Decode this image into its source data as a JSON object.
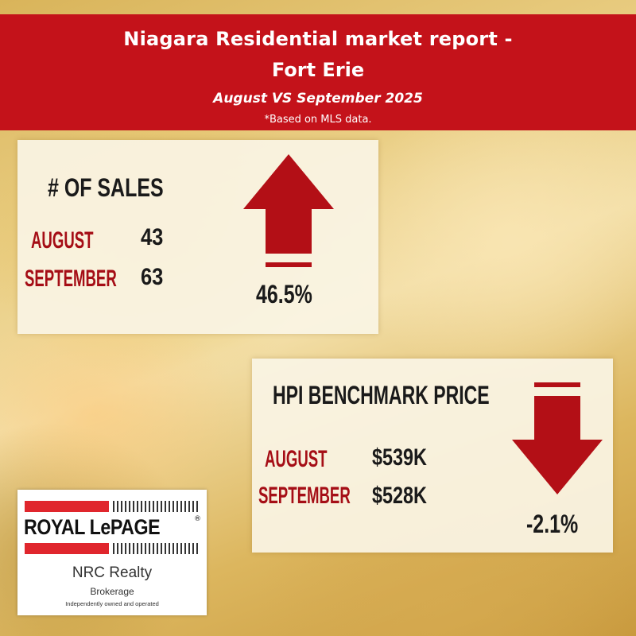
{
  "header": {
    "title_line1": "Niagara Residential market report -",
    "title_line2": "Fort Erie",
    "subtitle": "August VS September 2025",
    "note": "*Based on MLS data."
  },
  "sales": {
    "title": "# OF SALES",
    "rows": [
      {
        "label": "AUGUST",
        "value": "43"
      },
      {
        "label": "SEPTEMBER",
        "value": "63"
      }
    ],
    "change": "46.5%",
    "direction": "up",
    "arrow_icon": "arrow-up-icon"
  },
  "hpi": {
    "title": "HPI BENCHMARK PRICE",
    "rows": [
      {
        "label": "AUGUST",
        "value": "$539K"
      },
      {
        "label": "SEPTEMBER",
        "value": "$528K"
      }
    ],
    "change": "-2.1%",
    "direction": "down",
    "arrow_icon": "arrow-down-icon"
  },
  "logo": {
    "brand": "ROYAL LePAGE",
    "brand_mark": "®",
    "office": "NRC Realty",
    "type": "Brokerage",
    "tagline": "Independently owned and operated"
  },
  "colors": {
    "header_red": "#c4121a",
    "arrow_red": "#b30f16",
    "label_red": "#a50e16",
    "card_bg": "#faf4e4"
  }
}
